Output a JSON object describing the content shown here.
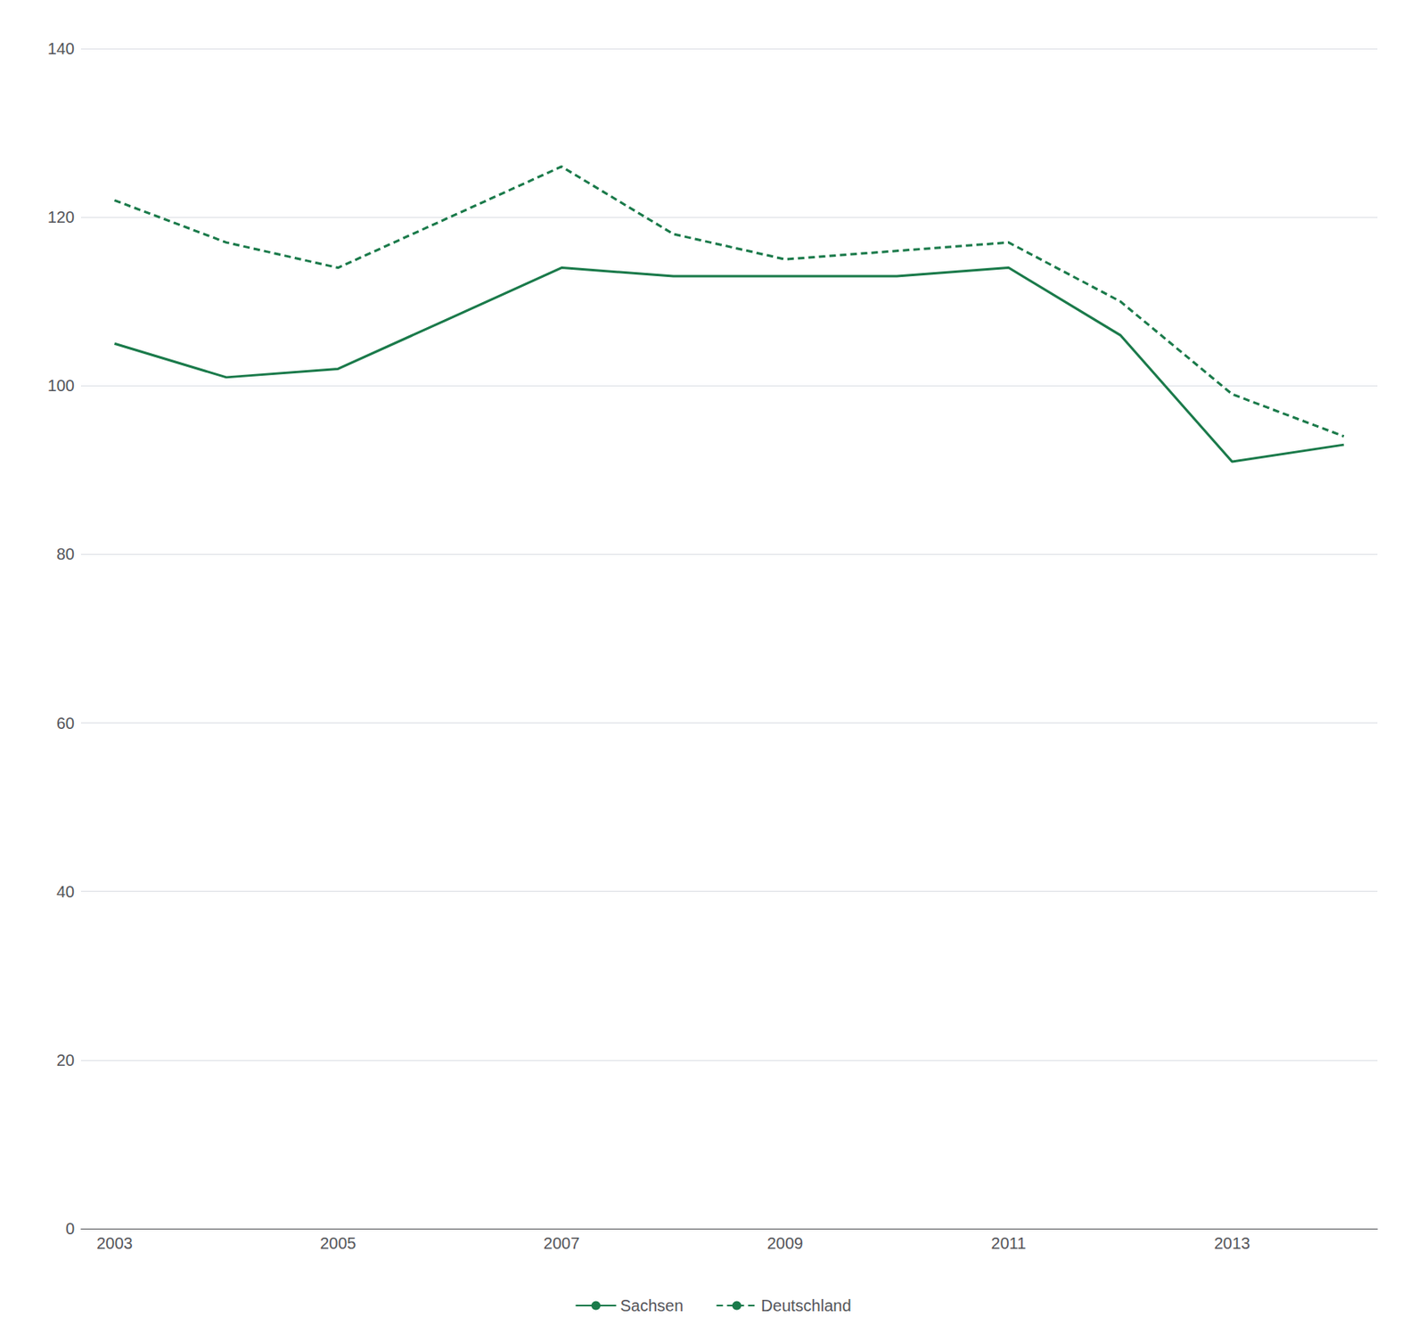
{
  "chart_data": {
    "type": "line",
    "x": [
      2003,
      2004,
      2005,
      2006,
      2007,
      2008,
      2009,
      2010,
      2011,
      2012,
      2013,
      2014
    ],
    "series": [
      {
        "name": "Sachsen",
        "color": "#1a7a4a",
        "line_style": "solid",
        "values": [
          105,
          101,
          102,
          108,
          114,
          113,
          113,
          113,
          114,
          106,
          91,
          93
        ]
      },
      {
        "name": "Deutschland",
        "color": "#1a7a4a",
        "line_style": "dashed",
        "values": [
          122,
          117,
          114,
          120,
          126,
          118,
          115,
          116,
          117,
          110,
          99,
          94
        ]
      }
    ],
    "xlim": [
      2002.7,
      2014.3
    ],
    "xticks": [
      2003,
      2005,
      2007,
      2009,
      2011,
      2013
    ],
    "ylim": [
      0,
      140
    ],
    "yticks": [
      0,
      20,
      40,
      60,
      80,
      100,
      120,
      140
    ],
    "grid": true,
    "legend": "bottom"
  }
}
